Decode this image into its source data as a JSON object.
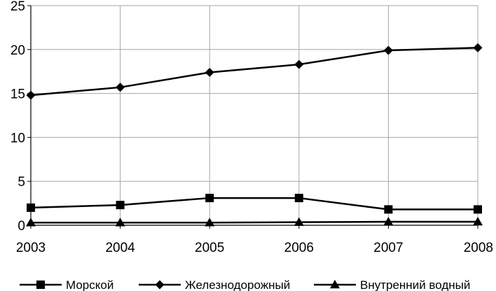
{
  "chart_data": {
    "type": "line",
    "title": "",
    "xlabel": "",
    "ylabel": "",
    "x": [
      "2003",
      "2004",
      "2005",
      "2006",
      "2007",
      "2008"
    ],
    "ylim": [
      0,
      25
    ],
    "yticks": [
      "0",
      "5",
      "10",
      "15",
      "20",
      "25"
    ],
    "grid": true,
    "legend_position": "bottom",
    "series": [
      {
        "name": "Морской",
        "marker": "square",
        "color": "#000000",
        "values": [
          2.0,
          2.3,
          3.1,
          3.1,
          1.8,
          1.8
        ]
      },
      {
        "name": "Железнодорожный",
        "marker": "diamond",
        "color": "#000000",
        "values": [
          14.8,
          15.7,
          17.4,
          18.3,
          19.9,
          20.2
        ]
      },
      {
        "name": "Внутренний водный",
        "marker": "triangle",
        "color": "#000000",
        "values": [
          0.3,
          0.3,
          0.3,
          0.35,
          0.4,
          0.4
        ]
      }
    ]
  }
}
